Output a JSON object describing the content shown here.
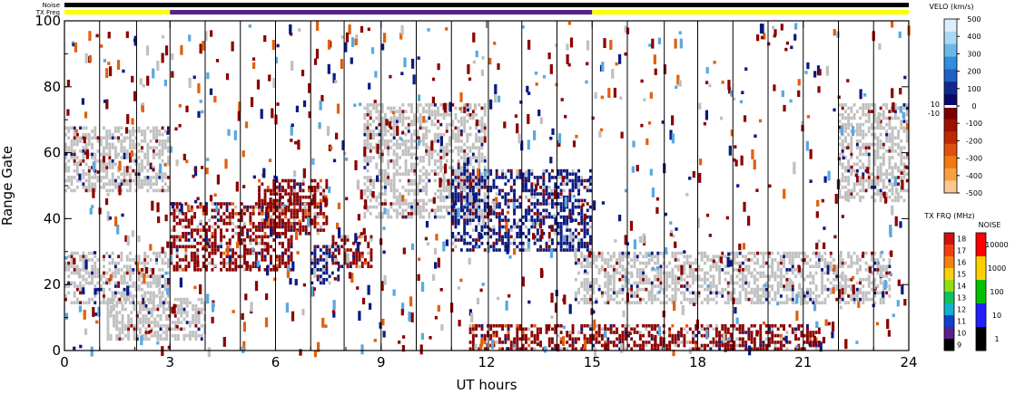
{
  "chart_data": {
    "type": "heatmap",
    "title": "",
    "xlabel": "UT hours",
    "ylabel": "Range Gate",
    "xlim": [
      0,
      24
    ],
    "ylim": [
      0,
      100
    ],
    "x_ticks": [
      "0",
      "3",
      "6",
      "9",
      "12",
      "15",
      "18",
      "21",
      "24"
    ],
    "y_ticks": [
      "0",
      "20",
      "40",
      "60",
      "80",
      "100"
    ],
    "status_bars": {
      "noise_label": "Noise",
      "txfreq_label": "TX Freq",
      "segments": [
        {
          "start": 0,
          "end": 3,
          "color": "#ffff00"
        },
        {
          "start": 3,
          "end": 15,
          "color": "#5a1f8c"
        },
        {
          "start": 15,
          "end": 24,
          "color": "#ffff00"
        }
      ]
    },
    "vertical_markers": [
      0.0,
      1.0,
      2.05,
      3.0,
      4.0,
      5.0,
      6.0,
      7.0,
      7.95,
      9.0,
      10.0,
      11.0,
      12.05,
      13.0,
      14.0,
      15.0,
      16.0,
      17.05,
      18.0,
      19.0,
      20.0,
      21.0,
      22.0,
      23.0,
      24.0
    ],
    "velocity_scale": {
      "title": "VELO (km/s)",
      "labels": [
        "500",
        "400",
        "300",
        "200",
        "100",
        "0",
        "-100",
        "-200",
        "-300",
        "-400",
        "-500"
      ],
      "side_labels": [
        "10",
        "-10"
      ],
      "colors_pos": [
        "#dbeefc",
        "#a9d8f5",
        "#69b8e8",
        "#2f8fdc",
        "#1f5fc8",
        "#102a8c",
        "#0a0a68"
      ],
      "colors_neg": [
        "#7a0000",
        "#a01000",
        "#c02a00",
        "#e05010",
        "#f07a10",
        "#f8a040",
        "#fcc890"
      ]
    },
    "txfreq_scale": {
      "title": "TX FRQ (MHz)",
      "labels": [
        "18",
        "17",
        "16",
        "15",
        "14",
        "13",
        "12",
        "11",
        "10",
        "9"
      ],
      "colors": [
        "#d01010",
        "#f04010",
        "#f88010",
        "#f8d010",
        "#90e010",
        "#10c060",
        "#10b0d0",
        "#1040d0",
        "#5a1f8c",
        "#000000"
      ]
    },
    "noise_scale": {
      "title": "NOISE",
      "labels": [
        "10000",
        "1000",
        "100",
        "10",
        "1"
      ],
      "colors": [
        "#ff0000",
        "#ffd000",
        "#00c000",
        "#2020ff",
        "#000000"
      ]
    },
    "palette": {
      "ground_scatter": "#c0c0c0",
      "negative_dark": "#8b0000",
      "positive_dark": "#0a1a80",
      "mid_orange": "#e06010",
      "light_blue": "#5aa8e0"
    },
    "regions": [
      {
        "kind": "gs",
        "x": [
          0.0,
          3.0
        ],
        "y": [
          48,
          68
        ]
      },
      {
        "kind": "gs",
        "x": [
          0.0,
          3.0
        ],
        "y": [
          14,
          30
        ]
      },
      {
        "kind": "gs",
        "x": [
          1.2,
          4.0
        ],
        "y": [
          3,
          16
        ]
      },
      {
        "kind": "neg",
        "x": [
          3.0,
          6.5
        ],
        "y": [
          24,
          45
        ]
      },
      {
        "kind": "neg",
        "x": [
          5.5,
          7.5
        ],
        "y": [
          35,
          52
        ]
      },
      {
        "kind": "neg",
        "x": [
          7.6,
          8.8
        ],
        "y": [
          25,
          35
        ]
      },
      {
        "kind": "pos",
        "x": [
          7.0,
          7.8
        ],
        "y": [
          20,
          32
        ]
      },
      {
        "kind": "gs",
        "x": [
          8.5,
          12.0
        ],
        "y": [
          40,
          75
        ]
      },
      {
        "kind": "pos",
        "x": [
          11.0,
          15.0
        ],
        "y": [
          30,
          55
        ]
      },
      {
        "kind": "gs",
        "x": [
          14.5,
          23.5
        ],
        "y": [
          14,
          30
        ]
      },
      {
        "kind": "neg",
        "x": [
          11.5,
          21.5
        ],
        "y": [
          0,
          8
        ]
      },
      {
        "kind": "gs",
        "x": [
          22.0,
          24.0
        ],
        "y": [
          45,
          75
        ]
      }
    ]
  }
}
